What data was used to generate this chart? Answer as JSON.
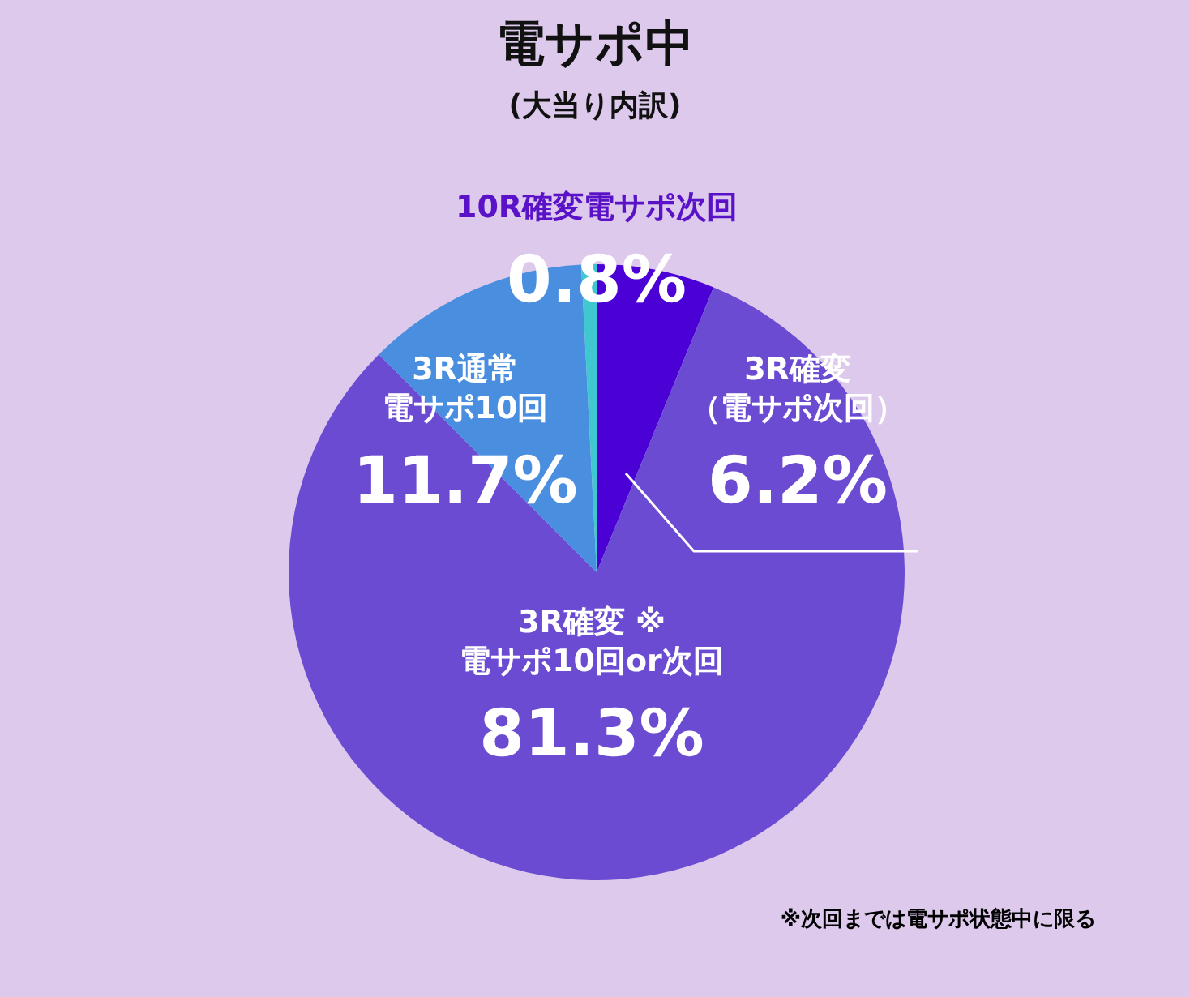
{
  "chart_data": {
    "type": "pie",
    "title": "電サポ中",
    "subtitle": "(大当り内訳)",
    "categories": [
      "3R確変（電サポ次回）",
      "3R確変 ※電サポ10回or次回",
      "3R通常電サポ10回",
      "10R確変電サポ次回"
    ],
    "values": [
      6.2,
      81.3,
      11.7,
      0.8
    ],
    "value_labels": [
      "6.2%",
      "81.3%",
      "11.7%",
      "0.8%"
    ],
    "colors": [
      "#4b00d6",
      "#6a4bd2",
      "#4a8ee0",
      "#40c8d0"
    ],
    "annotations": [
      "※次回までは電サポ状態中に限る"
    ]
  }
}
